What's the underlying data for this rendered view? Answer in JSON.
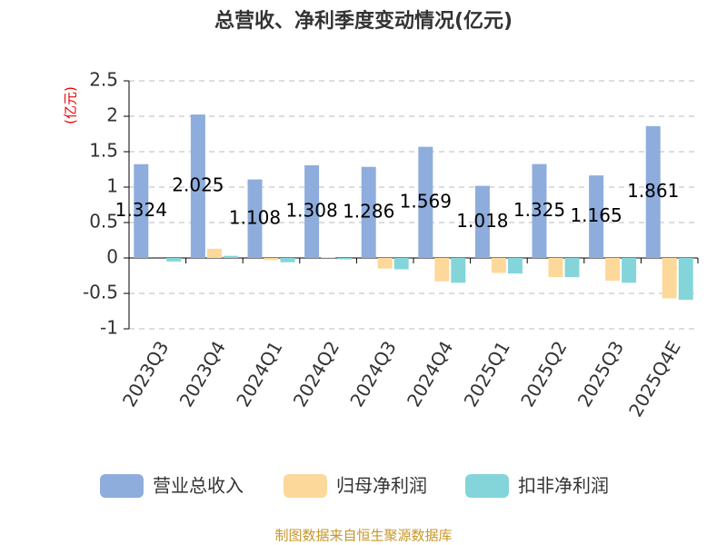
{
  "chart_data": {
    "type": "bar",
    "title": "总营收、净利季度变动情况(亿元)",
    "y_label": "(亿元)",
    "categories": [
      "2023Q3",
      "2023Q4",
      "2024Q1",
      "2024Q2",
      "2024Q3",
      "2024Q4",
      "2025Q1",
      "2025Q2",
      "2025Q3",
      "2025Q4E"
    ],
    "series": [
      {
        "name": "营业总收入",
        "color": "#8eaddc",
        "values": [
          1.324,
          2.025,
          1.108,
          1.308,
          1.286,
          1.569,
          1.018,
          1.325,
          1.165,
          1.861
        ]
      },
      {
        "name": "归母净利润",
        "color": "#fdd89b",
        "values": [
          0.0,
          0.13,
          -0.03,
          0.01,
          -0.15,
          -0.33,
          -0.21,
          -0.27,
          -0.32,
          -0.57
        ]
      },
      {
        "name": "扣非净利润",
        "color": "#84d5d9",
        "values": [
          -0.05,
          0.03,
          -0.06,
          -0.02,
          -0.16,
          -0.35,
          -0.22,
          -0.27,
          -0.35,
          -0.59
        ]
      }
    ],
    "ylim": [
      -1,
      2.5
    ],
    "yticks": [
      -1,
      -0.5,
      0,
      0.5,
      1,
      1.5,
      2,
      2.5
    ],
    "grid": true,
    "source": "制图数据来自恒生聚源数据库"
  }
}
